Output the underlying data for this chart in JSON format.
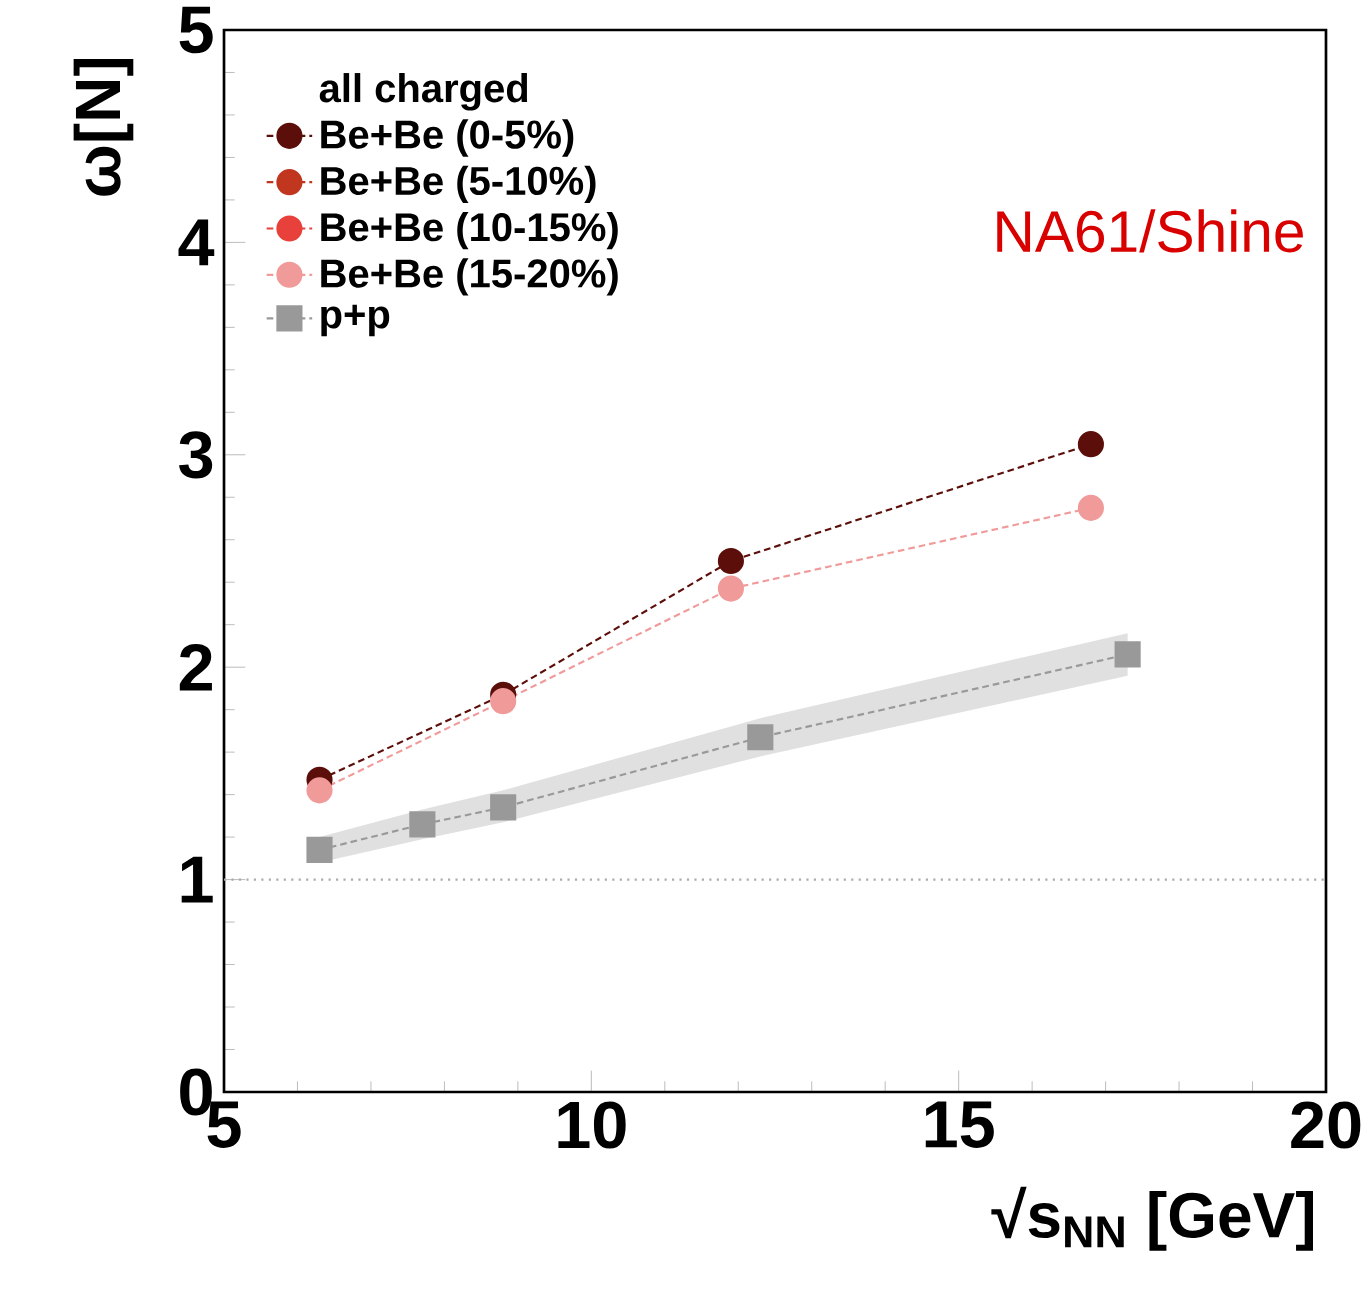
{
  "chart_data": {
    "type": "line",
    "xlabel": "√s$_{NN}$  [GeV]",
    "ylabel": "ω[N]",
    "legend_title": "all charged",
    "annotations": [
      "NA61/Shine"
    ],
    "xlim": [
      5,
      20
    ],
    "xticks": [
      5,
      10,
      15,
      20
    ],
    "ylim": [
      0,
      5
    ],
    "yticks": [
      0,
      1,
      2,
      3,
      4,
      5
    ],
    "legend": "top left",
    "grid": false,
    "line_style": "dashed",
    "ref_lines": [
      {
        "axis": "y",
        "value": 1,
        "color": "#aaaaaa",
        "line_style": "dotted"
      }
    ],
    "series": [
      {
        "name": "Be+Be (0-5%)",
        "color": "#5c0f0a",
        "marker": "circle",
        "x": [
          6.3,
          8.8,
          11.9,
          16.8
        ],
        "values": [
          1.47,
          1.87,
          2.5,
          3.05
        ]
      },
      {
        "name": "Be+Be (5-10%)",
        "color": "#c0361f",
        "marker": "circle",
        "values": [
          null,
          null,
          null,
          null
        ]
      },
      {
        "name": "Be+Be (10-15%)",
        "color": "#e8403a",
        "marker": "circle",
        "values": [
          null,
          null,
          null,
          null
        ]
      },
      {
        "name": "Be+Be (15-20%)",
        "color": "#f09a9a",
        "marker": "circle",
        "x": [
          6.3,
          8.8,
          11.9,
          16.8
        ],
        "values": [
          1.42,
          1.84,
          2.37,
          2.75
        ]
      },
      {
        "name": "p+p",
        "color": "#999999",
        "marker": "square",
        "x": [
          6.3,
          7.7,
          8.8,
          12.3,
          17.3
        ],
        "values": [
          1.14,
          1.26,
          1.34,
          1.67,
          2.06
        ],
        "lower": [
          1.08,
          1.19,
          1.27,
          1.58,
          1.96
        ],
        "upper": [
          1.2,
          1.33,
          1.42,
          1.76,
          2.16
        ]
      }
    ]
  }
}
